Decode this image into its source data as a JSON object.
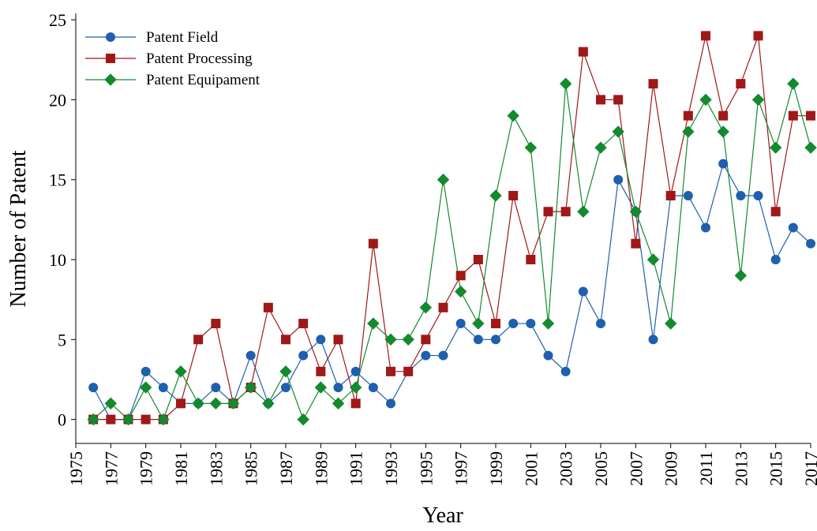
{
  "chart_data": {
    "type": "line",
    "x_label": "Year",
    "y_label": "Number of Patent",
    "x": [
      1976,
      1977,
      1978,
      1979,
      1980,
      1981,
      1982,
      1983,
      1984,
      1985,
      1986,
      1987,
      1988,
      1989,
      1990,
      1991,
      1992,
      1993,
      1994,
      1995,
      1996,
      1997,
      1998,
      1999,
      2000,
      2001,
      2002,
      2003,
      2004,
      2005,
      2006,
      2007,
      2008,
      2009,
      2010,
      2011,
      2012,
      2013,
      2014,
      2015,
      2016,
      2017
    ],
    "series": [
      {
        "name": "Patent Field",
        "color": "#1f5fae",
        "marker": "circle",
        "values": [
          2,
          0,
          0,
          3,
          2,
          1,
          1,
          2,
          1,
          4,
          1,
          2,
          4,
          5,
          2,
          3,
          2,
          1,
          3,
          4,
          4,
          6,
          5,
          5,
          6,
          6,
          4,
          3,
          8,
          6,
          15,
          13,
          5,
          14,
          14,
          12,
          16,
          14,
          14,
          10,
          12,
          11
        ]
      },
      {
        "name": "Patent Processing",
        "color": "#a01818",
        "marker": "square",
        "values": [
          0,
          0,
          0,
          0,
          0,
          1,
          5,
          6,
          1,
          2,
          7,
          5,
          6,
          3,
          5,
          1,
          11,
          3,
          3,
          5,
          7,
          9,
          10,
          6,
          14,
          10,
          13,
          13,
          23,
          20,
          20,
          11,
          21,
          14,
          19,
          24,
          19,
          21,
          24,
          13,
          19,
          19
        ]
      },
      {
        "name": "Patent Equipament",
        "color": "#138a2e",
        "marker": "diamond",
        "values": [
          0,
          1,
          0,
          2,
          0,
          3,
          1,
          1,
          1,
          2,
          1,
          3,
          0,
          2,
          1,
          2,
          6,
          5,
          5,
          7,
          15,
          8,
          6,
          14,
          19,
          17,
          6,
          21,
          13,
          17,
          18,
          13,
          10,
          6,
          18,
          20,
          18,
          9,
          20,
          17,
          21,
          17
        ]
      }
    ],
    "xlim": [
      1975,
      2017
    ],
    "ylim": [
      -1.5,
      25.4
    ],
    "xticks": [
      1975,
      1977,
      1979,
      1981,
      1983,
      1985,
      1987,
      1989,
      1991,
      1993,
      1995,
      1997,
      1999,
      2001,
      2003,
      2005,
      2007,
      2009,
      2011,
      2013,
      2015,
      2017
    ],
    "yticks": [
      0,
      5,
      10,
      15,
      20,
      25
    ],
    "legend": "top-left"
  }
}
